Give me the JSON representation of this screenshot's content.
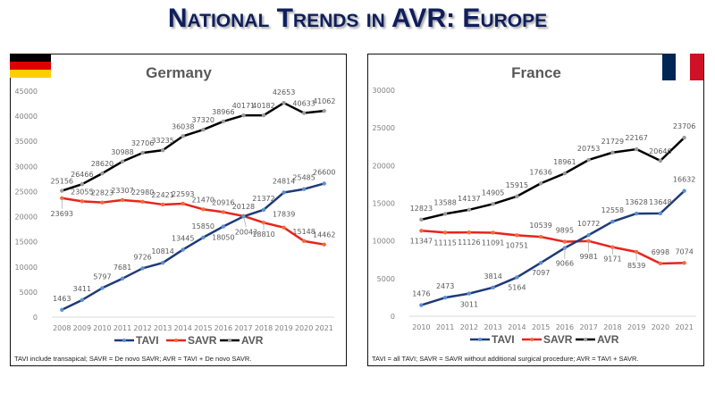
{
  "slide": {
    "title": "National Trends in AVR: Europe"
  },
  "colors": {
    "tavi": "#1f3a78",
    "savr": "#e8231c",
    "avr": "#000000",
    "title": "#0f1f5c",
    "flag_de": [
      "#000000",
      "#dd0000",
      "#ffce00"
    ],
    "flag_fr": [
      "#002654",
      "#ffffff",
      "#ce1126"
    ]
  },
  "flags": {
    "germany": "german-flag",
    "france": "french-flag"
  },
  "chart_data": [
    {
      "type": "line",
      "title": "Germany",
      "xlabel": "",
      "ylabel": "",
      "ylim": [
        0,
        45000
      ],
      "yticks": [
        0,
        5000,
        10000,
        15000,
        20000,
        25000,
        30000,
        35000,
        40000,
        45000
      ],
      "grid": false,
      "legend": "bottom",
      "x": [
        "2008",
        "2009",
        "2010",
        "2011",
        "2012",
        "2013",
        "2014",
        "2015",
        "2016",
        "2017",
        "2018",
        "2019",
        "2020",
        "2021"
      ],
      "series": [
        {
          "name": "TAVI",
          "values": [
            1463,
            3411,
            5797,
            7681,
            9726,
            10814,
            13445,
            15850,
            18050,
            20043,
            21372,
            24814,
            25485,
            26600
          ]
        },
        {
          "name": "SAVR",
          "values": [
            23693,
            23055,
            22823,
            23307,
            22980,
            22421,
            22593,
            21470,
            20916,
            20128,
            18810,
            17839,
            15148,
            14462
          ]
        },
        {
          "name": "AVR",
          "values": [
            25156,
            26466,
            28620,
            30988,
            32706,
            33235,
            36038,
            37320,
            38966,
            40171,
            40182,
            42653,
            40633,
            41062
          ]
        }
      ],
      "footnote": "TAVI include transapical;  SAVR = De novo SAVR;  AVR =  TAVI + De novo SAVR."
    },
    {
      "type": "line",
      "title": "France",
      "xlabel": "",
      "ylabel": "",
      "ylim": [
        0,
        30000
      ],
      "yticks": [
        0,
        5000,
        10000,
        15000,
        20000,
        25000,
        30000
      ],
      "grid": false,
      "legend": "bottom",
      "x": [
        "2010",
        "2011",
        "2012",
        "2013",
        "2014",
        "2015",
        "2016",
        "2017",
        "2018",
        "2019",
        "2020",
        "2021"
      ],
      "series": [
        {
          "name": "TAVI",
          "values": [
            1476,
            2473,
            3011,
            3814,
            5164,
            7097,
            9066,
            10772,
            12558,
            13628,
            13648,
            16632
          ]
        },
        {
          "name": "SAVR",
          "values": [
            11347,
            11115,
            11126,
            11091,
            10751,
            10539,
            9895,
            9981,
            9171,
            8539,
            6998,
            7074
          ]
        },
        {
          "name": "AVR",
          "values": [
            12823,
            13588,
            14137,
            14905,
            15915,
            17636,
            18961,
            20753,
            21729,
            22167,
            20646,
            23706
          ]
        }
      ],
      "footnote": "TAVI = all TAVI;  SAVR = SAVR without additional surgical procedure;  AVR =  TAVI + SAVR."
    }
  ]
}
